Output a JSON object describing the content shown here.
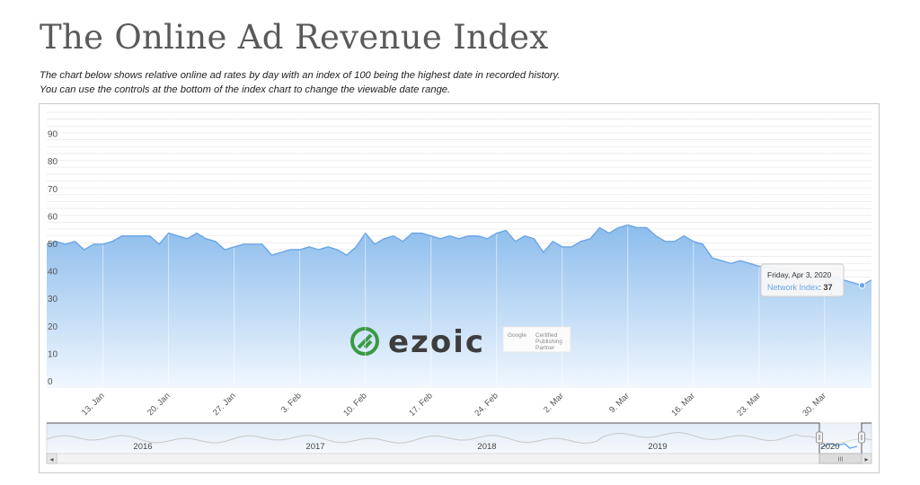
{
  "page": {
    "title": "The Online Ad Revenue Index",
    "intro_line1": "The chart below shows relative online ad rates by day with an index of 100 being the highest date in recorded history.",
    "intro_line2": "You can use the controls at the bottom of the index chart to change the viewable date range."
  },
  "watermark": {
    "brand": "ezoic",
    "badge_line1": "Google",
    "badge_line2": "Certified",
    "badge_line3": "Publishing",
    "badge_line4": "Partner"
  },
  "tooltip": {
    "date": "Friday, Apr 3, 2020",
    "series_label": "Network Index",
    "separator": ": ",
    "value": "37"
  },
  "navigator": {
    "year_labels": [
      "2016",
      "2017",
      "2018",
      "2019",
      "2020"
    ],
    "scroll_grip": "III",
    "left_arrow": "◂",
    "right_arrow": "▸"
  },
  "colors": {
    "area_top": "#8cbcec",
    "area_bottom": "#f0f7fe",
    "line": "#6aa6e6",
    "grid": "#e6e6e6",
    "navigator_line": "#c8c8c8",
    "ezoic_green": "#3a9a45",
    "ezoic_text": "#3d3d3d"
  },
  "chart_data": {
    "type": "area",
    "x_tick_labels": [
      "13. Jan",
      "20. Jan",
      "27. Jan",
      "3. Feb",
      "10. Feb",
      "17. Feb",
      "24. Feb",
      "2. Mar",
      "9. Mar",
      "16. Mar",
      "23. Mar",
      "30. Mar"
    ],
    "y_tick_labels": [
      "0",
      "10",
      "20",
      "30",
      "40",
      "50",
      "60",
      "70",
      "80",
      "90"
    ],
    "ylim": [
      0,
      100
    ],
    "grid": true,
    "series": [
      {
        "name": "Network Index",
        "x": [
          "2020-01-07",
          "2020-01-08",
          "2020-01-09",
          "2020-01-10",
          "2020-01-11",
          "2020-01-12",
          "2020-01-13",
          "2020-01-14",
          "2020-01-15",
          "2020-01-16",
          "2020-01-17",
          "2020-01-18",
          "2020-01-19",
          "2020-01-20",
          "2020-01-21",
          "2020-01-22",
          "2020-01-23",
          "2020-01-24",
          "2020-01-25",
          "2020-01-26",
          "2020-01-27",
          "2020-01-28",
          "2020-01-29",
          "2020-01-30",
          "2020-01-31",
          "2020-02-01",
          "2020-02-02",
          "2020-02-03",
          "2020-02-04",
          "2020-02-05",
          "2020-02-06",
          "2020-02-07",
          "2020-02-08",
          "2020-02-09",
          "2020-02-10",
          "2020-02-11",
          "2020-02-12",
          "2020-02-13",
          "2020-02-14",
          "2020-02-15",
          "2020-02-16",
          "2020-02-17",
          "2020-02-18",
          "2020-02-19",
          "2020-02-20",
          "2020-02-21",
          "2020-02-22",
          "2020-02-23",
          "2020-02-24",
          "2020-02-25",
          "2020-02-26",
          "2020-02-27",
          "2020-02-28",
          "2020-02-29",
          "2020-03-01",
          "2020-03-02",
          "2020-03-03",
          "2020-03-04",
          "2020-03-05",
          "2020-03-06",
          "2020-03-07",
          "2020-03-08",
          "2020-03-09",
          "2020-03-10",
          "2020-03-11",
          "2020-03-12",
          "2020-03-13",
          "2020-03-14",
          "2020-03-15",
          "2020-03-16",
          "2020-03-17",
          "2020-03-18",
          "2020-03-19",
          "2020-03-20",
          "2020-03-21",
          "2020-03-22",
          "2020-03-23",
          "2020-03-24",
          "2020-03-25",
          "2020-03-26",
          "2020-03-27",
          "2020-03-28",
          "2020-03-29",
          "2020-03-30",
          "2020-03-31",
          "2020-04-01",
          "2020-04-02",
          "2020-04-03",
          "2020-04-04"
        ],
        "values": [
          52,
          53,
          52,
          53,
          50,
          52,
          52,
          53,
          55,
          55,
          55,
          55,
          52,
          56,
          55,
          54,
          56,
          54,
          53,
          50,
          51,
          52,
          52,
          52,
          48,
          49,
          50,
          50,
          51,
          50,
          51,
          50,
          48,
          51,
          56,
          52,
          54,
          55,
          53,
          56,
          56,
          55,
          54,
          55,
          54,
          55,
          55,
          54,
          56,
          57,
          53,
          55,
          54,
          49,
          53,
          51,
          51,
          53,
          54,
          58,
          56,
          58,
          59,
          58,
          58,
          55,
          53,
          53,
          55,
          53,
          52,
          47,
          46,
          45,
          46,
          45,
          44,
          44,
          43,
          43,
          42,
          41,
          41,
          40,
          40,
          39,
          38,
          37,
          39
        ]
      }
    ]
  }
}
